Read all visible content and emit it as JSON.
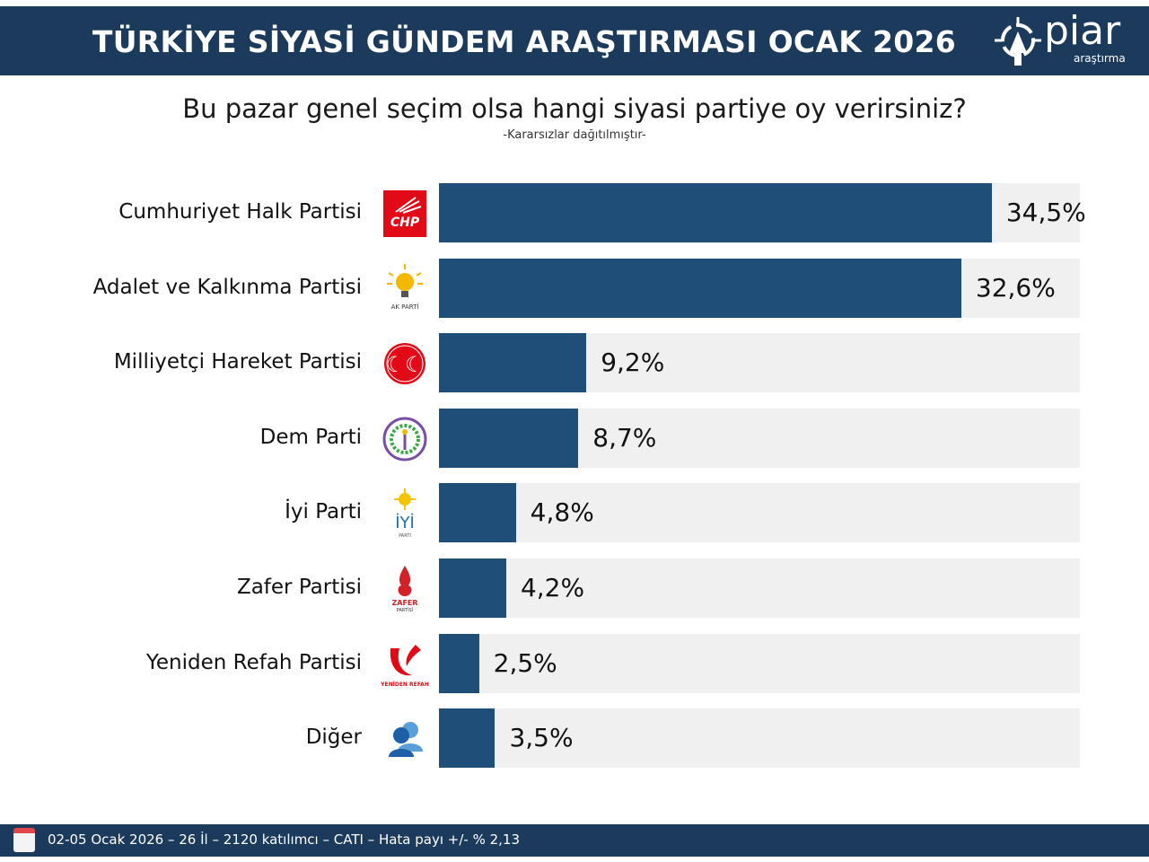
{
  "header": {
    "title": "TÜRKİYE SİYASİ GÜNDEM ARAŞTIRMASI OCAK 2026",
    "logo_name": "piar",
    "logo_sub": "araştırma"
  },
  "chart_data": {
    "type": "bar",
    "orientation": "horizontal",
    "title": "Bu pazar genel seçim olsa hangi siyasi partiye oy verirsiniz?",
    "subtitle": "-Kararsızlar dağıtılmıştır-",
    "categories": [
      "Cumhuriyet Halk Partisi",
      "Adalet ve Kalkınma Partisi",
      "Milliyetçi Hareket Partisi",
      "Dem Parti",
      "İyi Parti",
      "Zafer Partisi",
      "Yeniden Refah Partisi",
      "Diğer"
    ],
    "values": [
      34.5,
      32.6,
      9.2,
      8.7,
      4.8,
      4.2,
      2.5,
      3.5
    ],
    "labels": [
      "34,5%",
      "32,6%",
      "9,2%",
      "8,7%",
      "4,8%",
      "4,2%",
      "2,5%",
      "3,5%"
    ],
    "logos": [
      "CHP",
      "AK PARTİ",
      "MHP",
      "DEM PARTİ",
      "İYİ",
      "ZAFER",
      "YENİDEN REFAH",
      ""
    ],
    "xlim": [
      0,
      40
    ],
    "bar_color": "#1f4e79",
    "track_color": "#f0f0f0",
    "grid": false
  },
  "footer": {
    "text": "02-05 Ocak 2026 – 26 İl – 2120 katılımcı – CATI – Hata payı +/- % 2,13"
  }
}
